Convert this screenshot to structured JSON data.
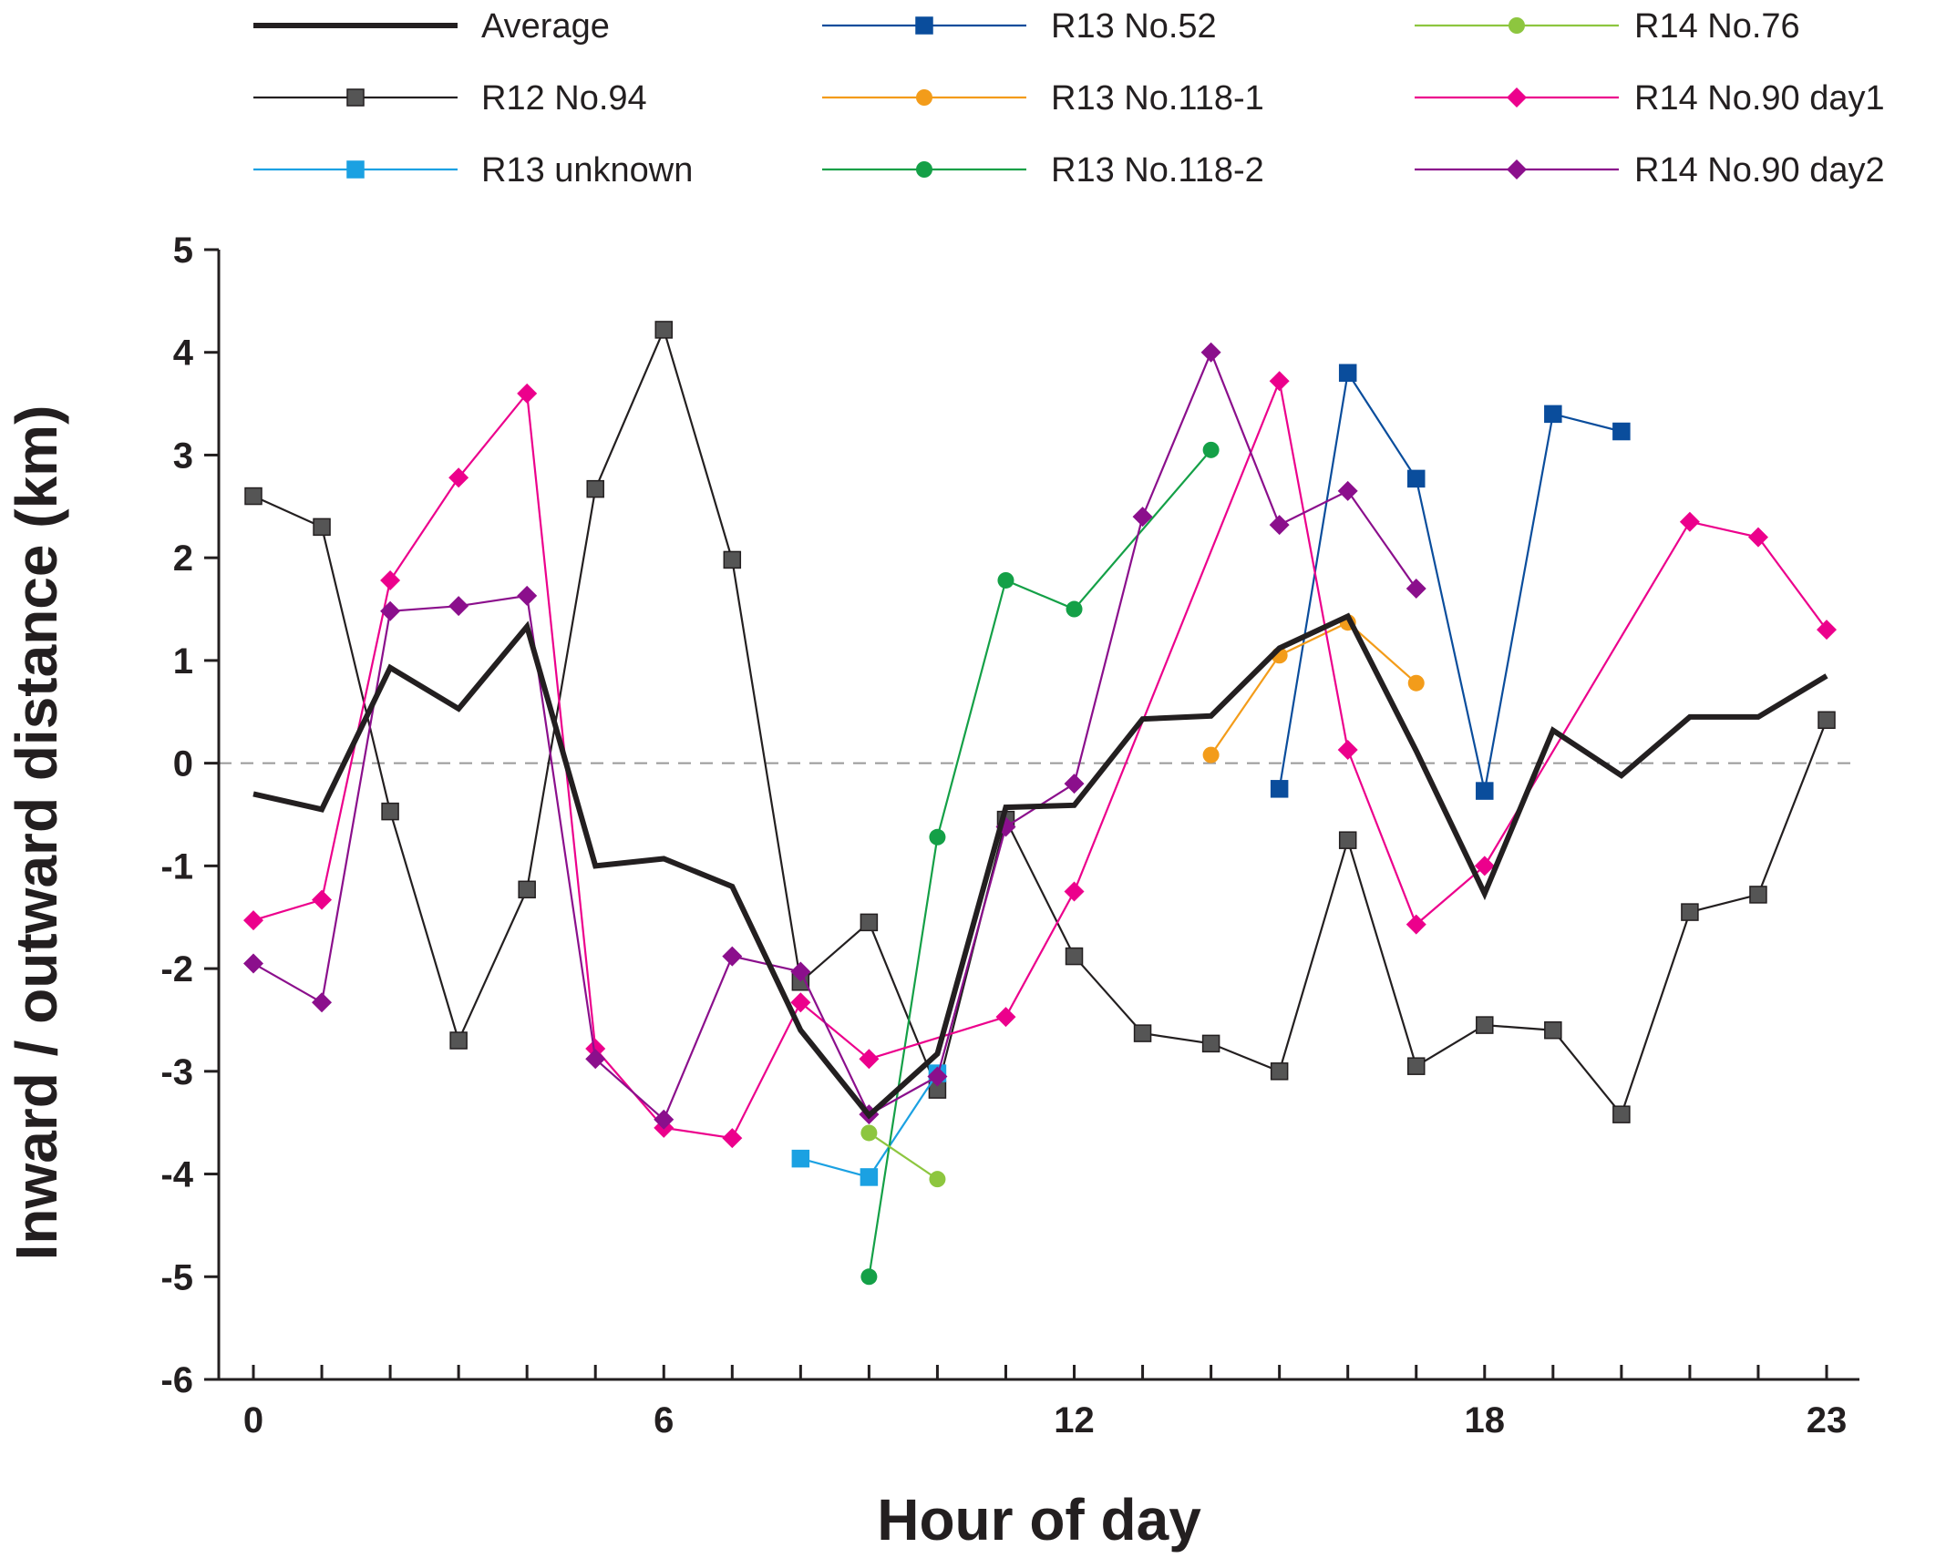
{
  "chart_data": {
    "type": "line",
    "title": "",
    "xlabel": "Hour of day",
    "ylabel": "Inward / outward distance (km)",
    "xlim": [
      -0.5,
      23.5
    ],
    "ylim": [
      -6,
      5
    ],
    "xticks": [
      0,
      1,
      2,
      3,
      4,
      5,
      6,
      7,
      8,
      9,
      10,
      11,
      12,
      13,
      14,
      15,
      16,
      17,
      18,
      19,
      20,
      21,
      22,
      23
    ],
    "xtick_labels": [
      {
        "value": 0,
        "label": "0"
      },
      {
        "value": 6,
        "label": "6"
      },
      {
        "value": 12,
        "label": "12"
      },
      {
        "value": 18,
        "label": "18"
      },
      {
        "value": 23,
        "label": "23"
      }
    ],
    "yticks": [
      {
        "value": 5,
        "label": "5"
      },
      {
        "value": 4,
        "label": "4"
      },
      {
        "value": 3,
        "label": "3"
      },
      {
        "value": 2,
        "label": "2"
      },
      {
        "value": 1,
        "label": "1"
      },
      {
        "value": 0,
        "label": "0"
      },
      {
        "value": -1,
        "label": "-1"
      },
      {
        "value": -2,
        "label": "-2"
      },
      {
        "value": -3,
        "label": "-3"
      },
      {
        "value": -4,
        "label": "-4"
      },
      {
        "value": -5,
        "label": "-5"
      },
      {
        "value": -6,
        "label": "-6"
      }
    ],
    "reference_line": {
      "y": 0,
      "style": "dashed",
      "color": "#999999"
    },
    "legend_position": "top",
    "series": [
      {
        "name": "Average",
        "color": "#231f20",
        "marker": "none",
        "line": "thick",
        "points": [
          [
            0,
            -0.3
          ],
          [
            1,
            -0.45
          ],
          [
            2,
            0.93
          ],
          [
            3,
            0.53
          ],
          [
            4,
            1.33
          ],
          [
            5,
            -1.0
          ],
          [
            6,
            -0.93
          ],
          [
            7,
            -1.2
          ],
          [
            8,
            -2.6
          ],
          [
            9,
            -3.43
          ],
          [
            10,
            -2.83
          ],
          [
            11,
            -0.43
          ],
          [
            12,
            -0.41
          ],
          [
            13,
            0.43
          ],
          [
            14,
            0.46
          ],
          [
            15,
            1.12
          ],
          [
            16,
            1.43
          ],
          [
            17,
            0.12
          ],
          [
            18,
            -1.27
          ],
          [
            19,
            0.32
          ],
          [
            20,
            -0.12
          ],
          [
            21,
            0.45
          ],
          [
            22,
            0.45
          ],
          [
            23,
            0.85
          ]
        ]
      },
      {
        "name": "R12 No.94",
        "color": "#231f20",
        "marker": "square",
        "markerColor": "#555555",
        "line": "thin",
        "points": [
          [
            0,
            2.6
          ],
          [
            1,
            2.3
          ],
          [
            2,
            -0.47
          ],
          [
            3,
            -2.7
          ],
          [
            4,
            -1.23
          ],
          [
            5,
            2.67
          ],
          [
            6,
            4.22
          ],
          [
            7,
            1.98
          ],
          [
            8,
            -2.13
          ],
          [
            9,
            -1.55
          ],
          [
            10,
            -3.18
          ],
          [
            11,
            -0.55
          ],
          [
            12,
            -1.88
          ],
          [
            13,
            -2.63
          ],
          [
            14,
            -2.73
          ],
          [
            15,
            -3.0
          ],
          [
            16,
            -0.75
          ],
          [
            17,
            -2.95
          ],
          [
            18,
            -2.55
          ],
          [
            19,
            -2.6
          ],
          [
            20,
            -3.42
          ],
          [
            21,
            -1.45
          ],
          [
            22,
            -1.28
          ],
          [
            23,
            0.42
          ]
        ]
      },
      {
        "name": "R13 unknown",
        "color": "#1ba1e2",
        "marker": "square",
        "markerColor": "#1ba1e2",
        "line": "thin",
        "points": [
          [
            8,
            -3.85
          ],
          [
            9,
            -4.03
          ],
          [
            10,
            -3.02
          ]
        ]
      },
      {
        "name": "R13 No.52",
        "color": "#0a4d9c",
        "marker": "square",
        "markerColor": "#0a4d9c",
        "line": "thin",
        "points": [
          [
            15,
            -0.25
          ],
          [
            16,
            3.8
          ],
          [
            17,
            2.77
          ],
          [
            18,
            -0.27
          ],
          [
            19,
            3.4
          ],
          [
            20,
            3.23
          ]
        ]
      },
      {
        "name": "R13 No.118-1",
        "color": "#f39c1a",
        "marker": "circle",
        "markerColor": "#f39c1a",
        "line": "thin",
        "points": [
          [
            14,
            0.08
          ],
          [
            15,
            1.05
          ],
          [
            16,
            1.37
          ],
          [
            17,
            0.78
          ]
        ]
      },
      {
        "name": "R13 No.118-2",
        "color": "#14a047",
        "marker": "circle",
        "markerColor": "#14a047",
        "line": "thin",
        "points": [
          [
            9,
            -5.0
          ],
          [
            10,
            -0.72
          ],
          [
            11,
            1.78
          ],
          [
            12,
            1.5
          ],
          [
            14,
            3.05
          ]
        ]
      },
      {
        "name": "R14 No.76",
        "color": "#8dc63f",
        "marker": "circle",
        "markerColor": "#8dc63f",
        "line": "thin",
        "points": [
          [
            9,
            -3.6
          ],
          [
            10,
            -4.05
          ]
        ]
      },
      {
        "name": "R14 No.90 day1",
        "color": "#ec008c",
        "marker": "diamond",
        "markerColor": "#ec008c",
        "line": "thin",
        "points": [
          [
            0,
            -1.53
          ],
          [
            1,
            -1.33
          ],
          [
            2,
            1.78
          ],
          [
            3,
            2.78
          ],
          [
            4,
            3.6
          ],
          [
            5,
            -2.78
          ],
          [
            6,
            -3.55
          ],
          [
            7,
            -3.65
          ],
          [
            8,
            -2.33
          ],
          [
            9,
            -2.88
          ],
          [
            11,
            -2.47
          ],
          [
            12,
            -1.25
          ],
          [
            15,
            3.72
          ],
          [
            16,
            0.13
          ],
          [
            17,
            -1.57
          ],
          [
            18,
            -1.0
          ],
          [
            21,
            2.35
          ],
          [
            22,
            2.2
          ],
          [
            23,
            1.3
          ]
        ]
      },
      {
        "name": "R14 No.90 day2",
        "color": "#8b0f8c",
        "marker": "diamond",
        "markerColor": "#8b0f8c",
        "line": "thin",
        "points": [
          [
            0,
            -1.95
          ],
          [
            1,
            -2.33
          ],
          [
            2,
            1.48
          ],
          [
            3,
            1.53
          ],
          [
            4,
            1.63
          ],
          [
            5,
            -2.88
          ],
          [
            6,
            -3.47
          ],
          [
            7,
            -1.88
          ],
          [
            8,
            -2.03
          ],
          [
            9,
            -3.42
          ],
          [
            10,
            -3.05
          ],
          [
            11,
            -0.62
          ],
          [
            12,
            -0.2
          ],
          [
            13,
            2.4
          ],
          [
            14,
            4.0
          ],
          [
            15,
            2.32
          ],
          [
            16,
            2.65
          ],
          [
            17,
            1.7
          ]
        ]
      }
    ]
  }
}
